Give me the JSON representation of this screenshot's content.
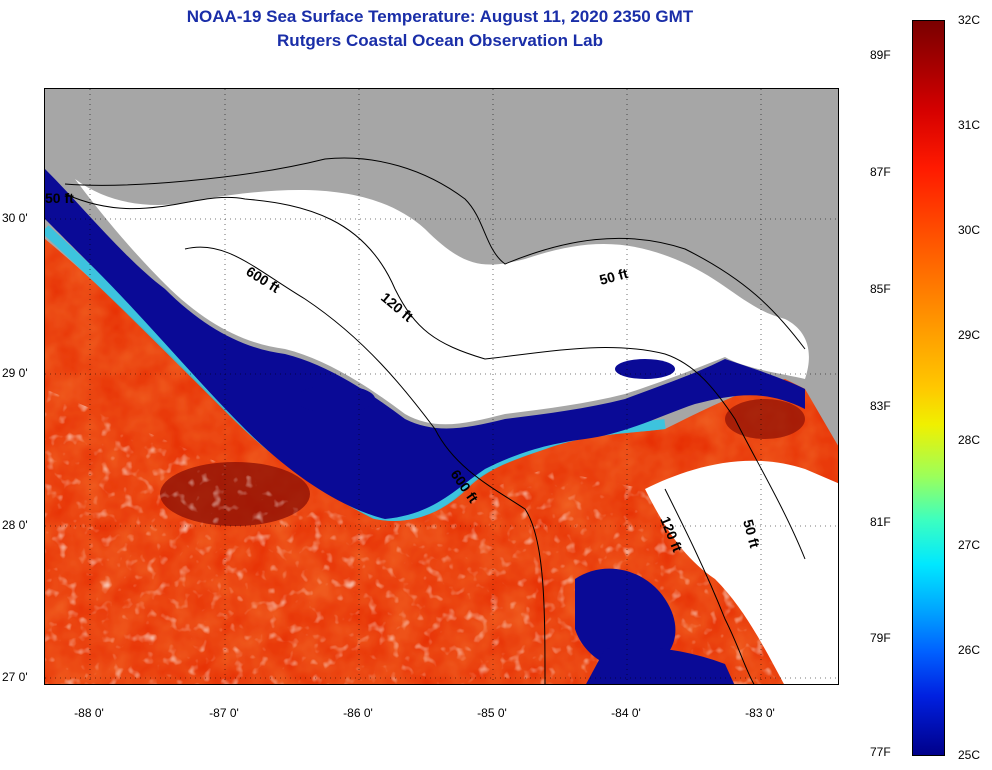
{
  "title": "NOAA-19 Sea Surface Temperature:  August 11, 2020 2350 GMT",
  "subtitle": "Rutgers Coastal Ocean Observation Lab",
  "latitude_ticks": [
    "30 0'",
    "29 0'",
    "28 0'",
    "27 0'"
  ],
  "longitude_ticks": [
    "-88 0'",
    "-87 0'",
    "-86 0'",
    "-85 0'",
    "-84 0'",
    "-83 0'"
  ],
  "contour_labels": [
    "50 ft",
    "600 ft",
    "120 ft",
    "50 ft",
    "600 ft",
    "120 ft",
    "50 ft"
  ],
  "colorbar": {
    "fahrenheit": [
      "89F",
      "87F",
      "85F",
      "83F",
      "81F",
      "79F",
      "77F"
    ],
    "celsius": [
      "32C",
      "31C",
      "30C",
      "29C",
      "28C",
      "27C",
      "26C",
      "25C"
    ]
  },
  "colors": {
    "land": "#a6a6a6",
    "no_data": "#ffffff",
    "cold_water": "#0a0a96",
    "warm_water": "#e82000",
    "title": "#1a2ea8"
  }
}
